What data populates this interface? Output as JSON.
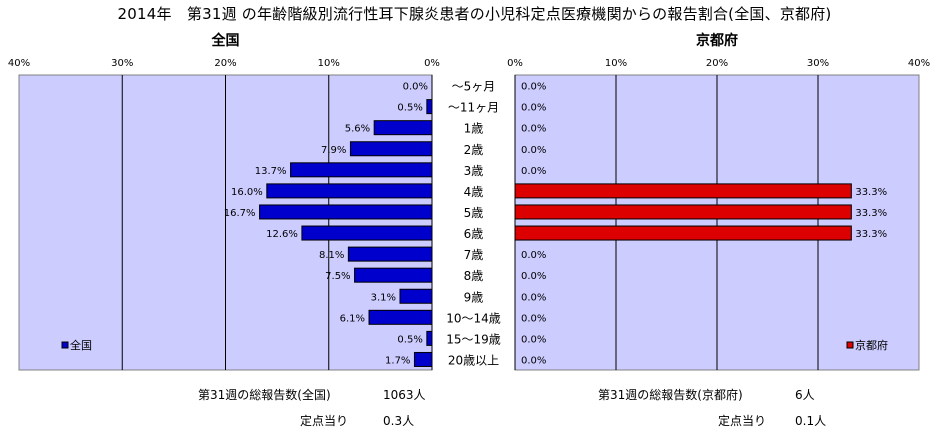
{
  "title": "2014年　第31週 の年齢階級別流行性耳下腺炎患者の小児科定点医療機関からの報告割合(全国、京都府)",
  "chart_data": [
    {
      "type": "bar",
      "orientation": "horizontal",
      "direction": "right-to-left",
      "title": "全国",
      "xlim": [
        0,
        40
      ],
      "ticks": [
        "40%",
        "30%",
        "20%",
        "10%",
        "0%"
      ],
      "tick_values": [
        40,
        30,
        20,
        10,
        0
      ],
      "color": "#0000cc",
      "legend": "全国",
      "legend_position": "bottom-left",
      "values": [
        0.0,
        0.5,
        5.6,
        7.9,
        13.7,
        16.0,
        16.7,
        12.6,
        8.1,
        7.5,
        3.1,
        6.1,
        0.5,
        1.7
      ],
      "value_labels": [
        "0.0%",
        "0.5%",
        "5.6%",
        "7.9%",
        "13.7%",
        "16.0%",
        "16.7%",
        "12.6%",
        "8.1%",
        "7.5%",
        "3.1%",
        "6.1%",
        "0.5%",
        "1.7%"
      ]
    },
    {
      "type": "bar",
      "orientation": "horizontal",
      "direction": "left-to-right",
      "title": "京都府",
      "xlim": [
        0,
        40
      ],
      "ticks": [
        "0%",
        "10%",
        "20%",
        "30%",
        "40%"
      ],
      "tick_values": [
        0,
        10,
        20,
        30,
        40
      ],
      "color": "#dd0000",
      "legend": "京都府",
      "legend_position": "bottom-right",
      "values": [
        0.0,
        0.0,
        0.0,
        0.0,
        0.0,
        33.3,
        33.3,
        33.3,
        0.0,
        0.0,
        0.0,
        0.0,
        0.0,
        0.0
      ],
      "value_labels": [
        "0.0%",
        "0.0%",
        "0.0%",
        "0.0%",
        "0.0%",
        "33.3%",
        "33.3%",
        "33.3%",
        "0.0%",
        "0.0%",
        "0.0%",
        "0.0%",
        "0.0%",
        "0.0%"
      ]
    }
  ],
  "categories": [
    "～5ヶ月",
    "～11ヶ月",
    "1歳",
    "2歳",
    "3歳",
    "4歳",
    "5歳",
    "6歳",
    "7歳",
    "8歳",
    "9歳",
    "10～14歳",
    "15～19歳",
    "20歳以上"
  ],
  "plot_bg": "#ccccff",
  "footer": {
    "national_total_label": "第31週の総報告数(全国)",
    "national_total_value": "1063人",
    "national_per_label": "定点当り",
    "national_per_value": "0.3人",
    "kyoto_total_label": "第31週の総報告数(京都府)",
    "kyoto_total_value": "6人",
    "kyoto_per_label": "定点当り",
    "kyoto_per_value": "0.1人"
  }
}
